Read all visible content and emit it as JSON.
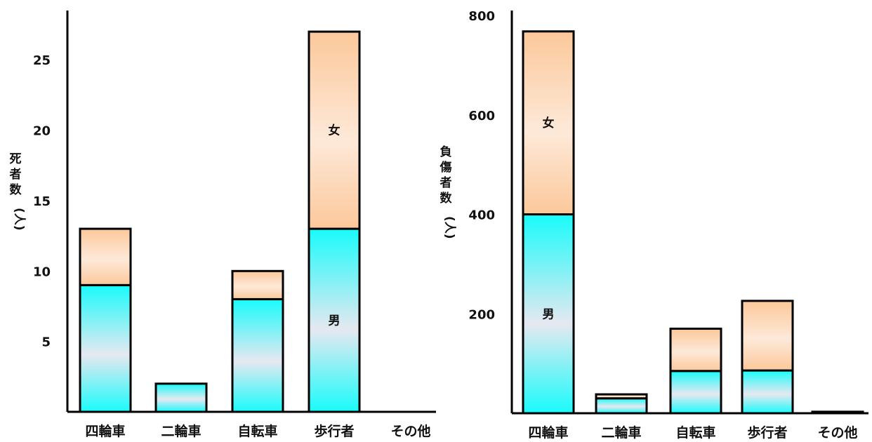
{
  "colors": {
    "male_top": "#19fbfb",
    "male_bottom": "#e6e8f0",
    "female_top": "#fcc89a",
    "female_bottom": "#fde9d9",
    "axis": "#000000"
  },
  "chart_data": [
    {
      "type": "bar",
      "stacked": true,
      "ylabel_chars": [
        "死",
        "者",
        "数",
        "(人)"
      ],
      "categories": [
        "四輪車",
        "二輪車",
        "自転車",
        "歩行者",
        "その他"
      ],
      "yticks": [
        5,
        10,
        15,
        20,
        25
      ],
      "ylim": [
        0,
        28.5
      ],
      "grid": false,
      "series": [
        {
          "name": "男",
          "values": [
            9,
            2,
            8,
            13,
            0
          ]
        },
        {
          "name": "女",
          "values": [
            4,
            0,
            2,
            14,
            0
          ]
        }
      ],
      "segment_labels": [
        {
          "text": "男",
          "category_index": 3,
          "series_index": 0
        },
        {
          "text": "女",
          "category_index": 3,
          "series_index": 1
        }
      ]
    },
    {
      "type": "bar",
      "stacked": true,
      "ylabel_chars": [
        "負",
        "傷",
        "者",
        "数",
        "(人)"
      ],
      "categories": [
        "四輪車",
        "二輪車",
        "自転車",
        "歩行者",
        "その他"
      ],
      "yticks": [
        200,
        400,
        600,
        800
      ],
      "ylim": [
        0,
        810
      ],
      "grid": false,
      "series": [
        {
          "name": "男",
          "values": [
            400,
            30,
            85,
            86,
            0
          ]
        },
        {
          "name": "女",
          "values": [
            368,
            8,
            85,
            140,
            3
          ]
        }
      ],
      "segment_labels": [
        {
          "text": "男",
          "category_index": 0,
          "series_index": 0
        },
        {
          "text": "女",
          "category_index": 0,
          "series_index": 1
        }
      ]
    }
  ]
}
